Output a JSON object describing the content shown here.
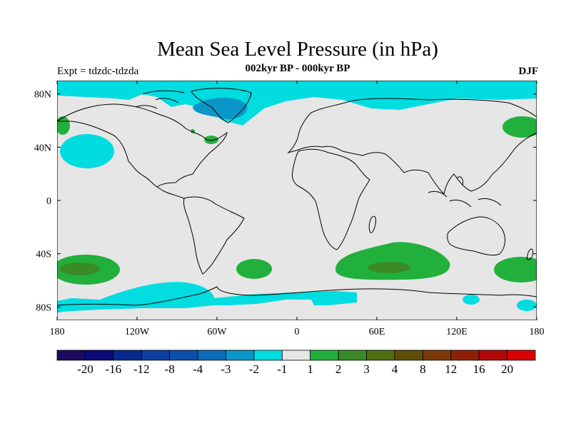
{
  "title": "Mean Sea Level Pressure (in hPa)",
  "experiment": "Expt = tdzdc-tdzda",
  "period": "002kyr BP - 000kyr BP",
  "season": "DJF",
  "map": {
    "lon_range": [
      -180,
      180
    ],
    "lat_range": [
      -90,
      90
    ],
    "x_ticks": [
      {
        "value": -180,
        "label": "180"
      },
      {
        "value": -120,
        "label": "120W"
      },
      {
        "value": -60,
        "label": "60W"
      },
      {
        "value": 0,
        "label": "0"
      },
      {
        "value": 60,
        "label": "60E"
      },
      {
        "value": 120,
        "label": "120E"
      },
      {
        "value": 180,
        "label": "180"
      }
    ],
    "y_ticks": [
      {
        "value": 80,
        "label": "80N"
      },
      {
        "value": 40,
        "label": "40N"
      },
      {
        "value": 0,
        "label": "0"
      },
      {
        "value": -40,
        "label": "40S"
      },
      {
        "value": -80,
        "label": "80S"
      }
    ],
    "background_color": "#e6e6e6"
  },
  "colorbar": {
    "colors": [
      "#1a0a5e",
      "#0a0a78",
      "#082a8c",
      "#0a3ea0",
      "#0a4fa8",
      "#0a6cb8",
      "#0a96c8",
      "#00dce0",
      "#e6e6e6",
      "#22b03c",
      "#3a8a28",
      "#4e6e12",
      "#604e08",
      "#7a3a08",
      "#8e2008",
      "#b00808",
      "#d80000"
    ],
    "labels": [
      "-20",
      "-16",
      "-12",
      "-8",
      "-4",
      "-3",
      "-2",
      "-1",
      "1",
      "2",
      "3",
      "4",
      "8",
      "12",
      "16",
      "20"
    ]
  }
}
